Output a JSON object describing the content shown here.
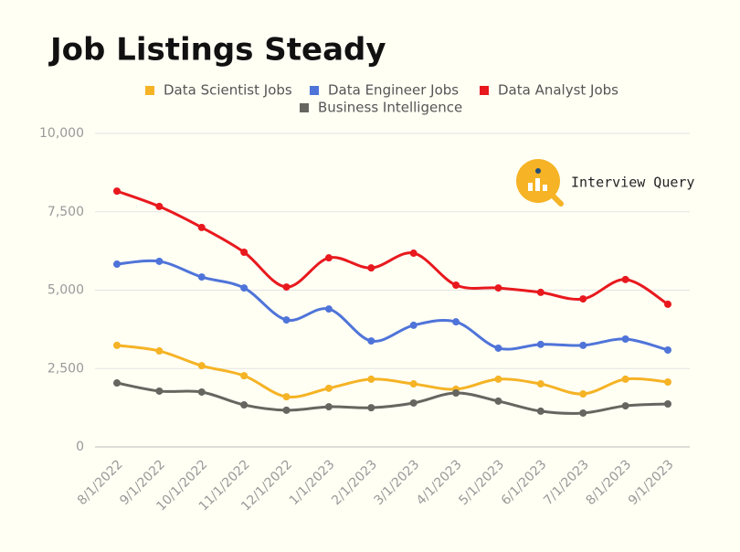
{
  "chart_data": {
    "type": "line",
    "title": "Job Listings Steady",
    "logo_text": "Interview Query",
    "x": [
      "8/1/2022",
      "9/1/2022",
      "10/1/2022",
      "11/1/2022",
      "12/1/2022",
      "1/1/2023",
      "2/1/2023",
      "3/1/2023",
      "4/1/2023",
      "5/1/2023",
      "6/1/2023",
      "7/1/2023",
      "8/1/2023",
      "9/1/2023"
    ],
    "series": [
      {
        "name": "Data Scientist Jobs",
        "color": "#f5b325",
        "values": [
          3240,
          3060,
          2590,
          2270,
          1600,
          1870,
          2160,
          2010,
          1840,
          2160,
          2010,
          1690,
          2160,
          2070
        ]
      },
      {
        "name": "Data Engineer Jobs",
        "color": "#4f74d9",
        "values": [
          5830,
          5920,
          5420,
          5070,
          4050,
          4400,
          3380,
          3880,
          3990,
          3150,
          3270,
          3240,
          3440,
          3090
        ]
      },
      {
        "name": "Data Analyst Jobs",
        "color": "#e8191e",
        "values": [
          8160,
          7670,
          7000,
          6210,
          5100,
          6030,
          5710,
          6180,
          5160,
          5070,
          4930,
          4720,
          5340,
          4550
        ]
      },
      {
        "name": "Business Intelligence",
        "color": "#666660",
        "values": [
          2040,
          1780,
          1750,
          1340,
          1170,
          1280,
          1250,
          1400,
          1720,
          1460,
          1140,
          1080,
          1310,
          1370
        ]
      }
    ],
    "ylim": [
      0,
      10000
    ],
    "yticks": [
      0,
      {
        "value": 2500,
        "label": "2,500"
      },
      {
        "value": 5000,
        "label": "5,000"
      },
      {
        "value": 7500,
        "label": "7,500"
      },
      {
        "value": 10000,
        "label": "10,000"
      }
    ],
    "grid": true
  }
}
